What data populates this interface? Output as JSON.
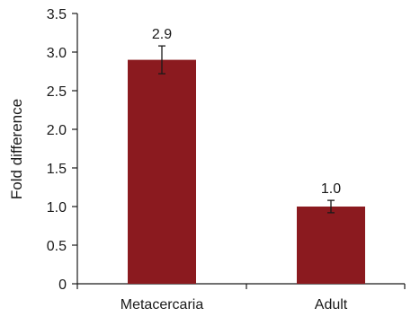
{
  "chart_data": {
    "type": "bar",
    "title": "",
    "xlabel": "",
    "ylabel": "Fold difference",
    "categories": [
      "Metacercaria",
      "Adult"
    ],
    "values": [
      2.9,
      1.0
    ],
    "data_labels": [
      "2.9",
      "1.0"
    ],
    "error": [
      0.18,
      0.08
    ],
    "ylim": [
      0,
      3.5
    ],
    "yticks": [
      0,
      0.5,
      1.0,
      1.5,
      2.0,
      2.5,
      3.0,
      3.5
    ],
    "ytick_labels": [
      "0",
      "0.5",
      "1.0",
      "1.5",
      "2.0",
      "2.5",
      "3.0",
      "3.5"
    ],
    "grid": false,
    "legend": "none",
    "colors": {
      "bar": "#8b1a1f",
      "axis": "#1a1a1a",
      "text": "#1a1a1a"
    }
  }
}
